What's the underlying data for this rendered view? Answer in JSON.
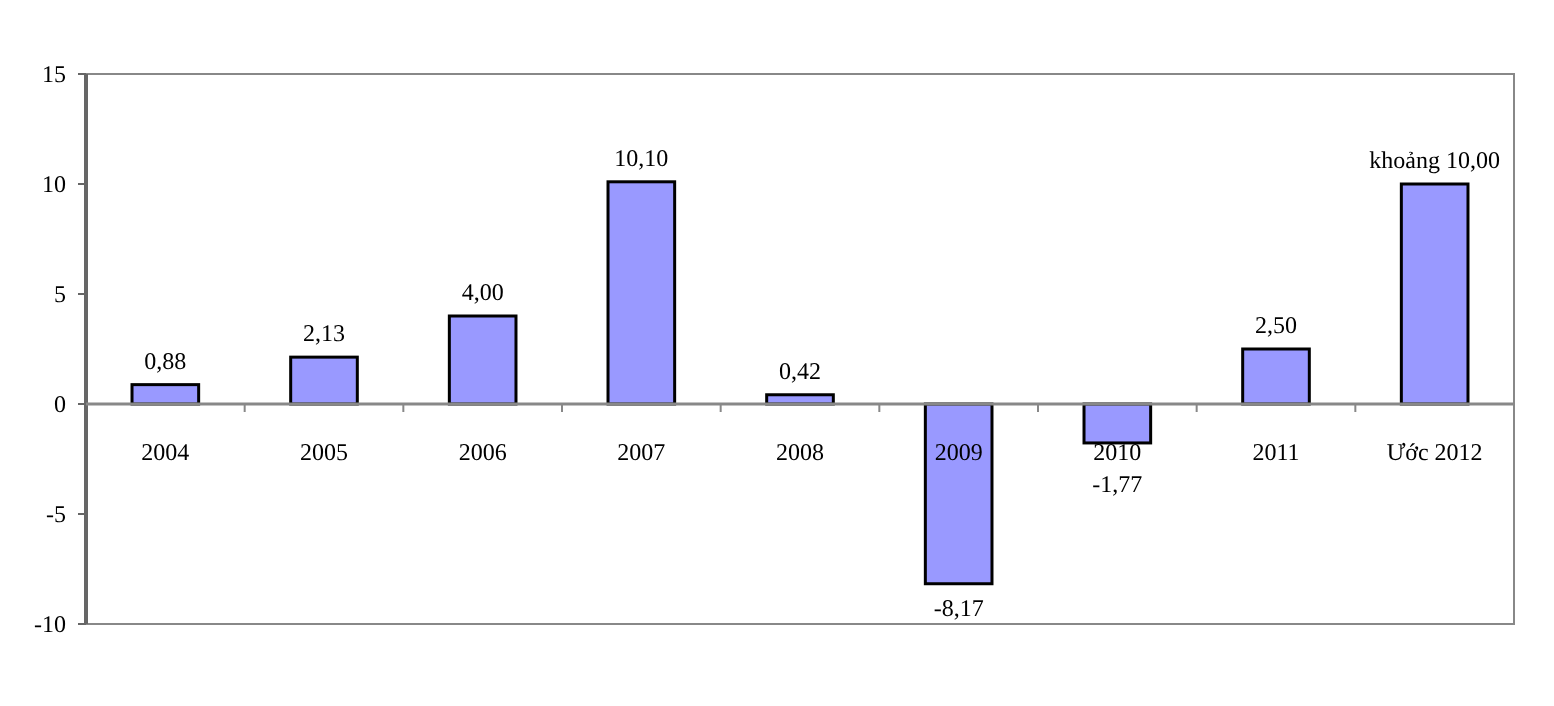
{
  "chart_data": {
    "type": "bar",
    "categories": [
      "2004",
      "2005",
      "2006",
      "2007",
      "2008",
      "2009",
      "2010",
      "2011",
      "Ước 2012"
    ],
    "values": [
      0.88,
      2.13,
      4.0,
      10.1,
      0.42,
      -8.17,
      -1.77,
      2.5,
      10.0
    ],
    "value_labels": [
      "0,88",
      "2,13",
      "4,00",
      "10,10",
      "0,42",
      "-8,17",
      "-1,77",
      "2,50",
      "khoảng 10,00"
    ],
    "color": "#9999ff",
    "ylim": [
      -10,
      15
    ],
    "yticks": [
      -10,
      -5,
      0,
      5,
      10,
      15
    ],
    "grid": false
  }
}
